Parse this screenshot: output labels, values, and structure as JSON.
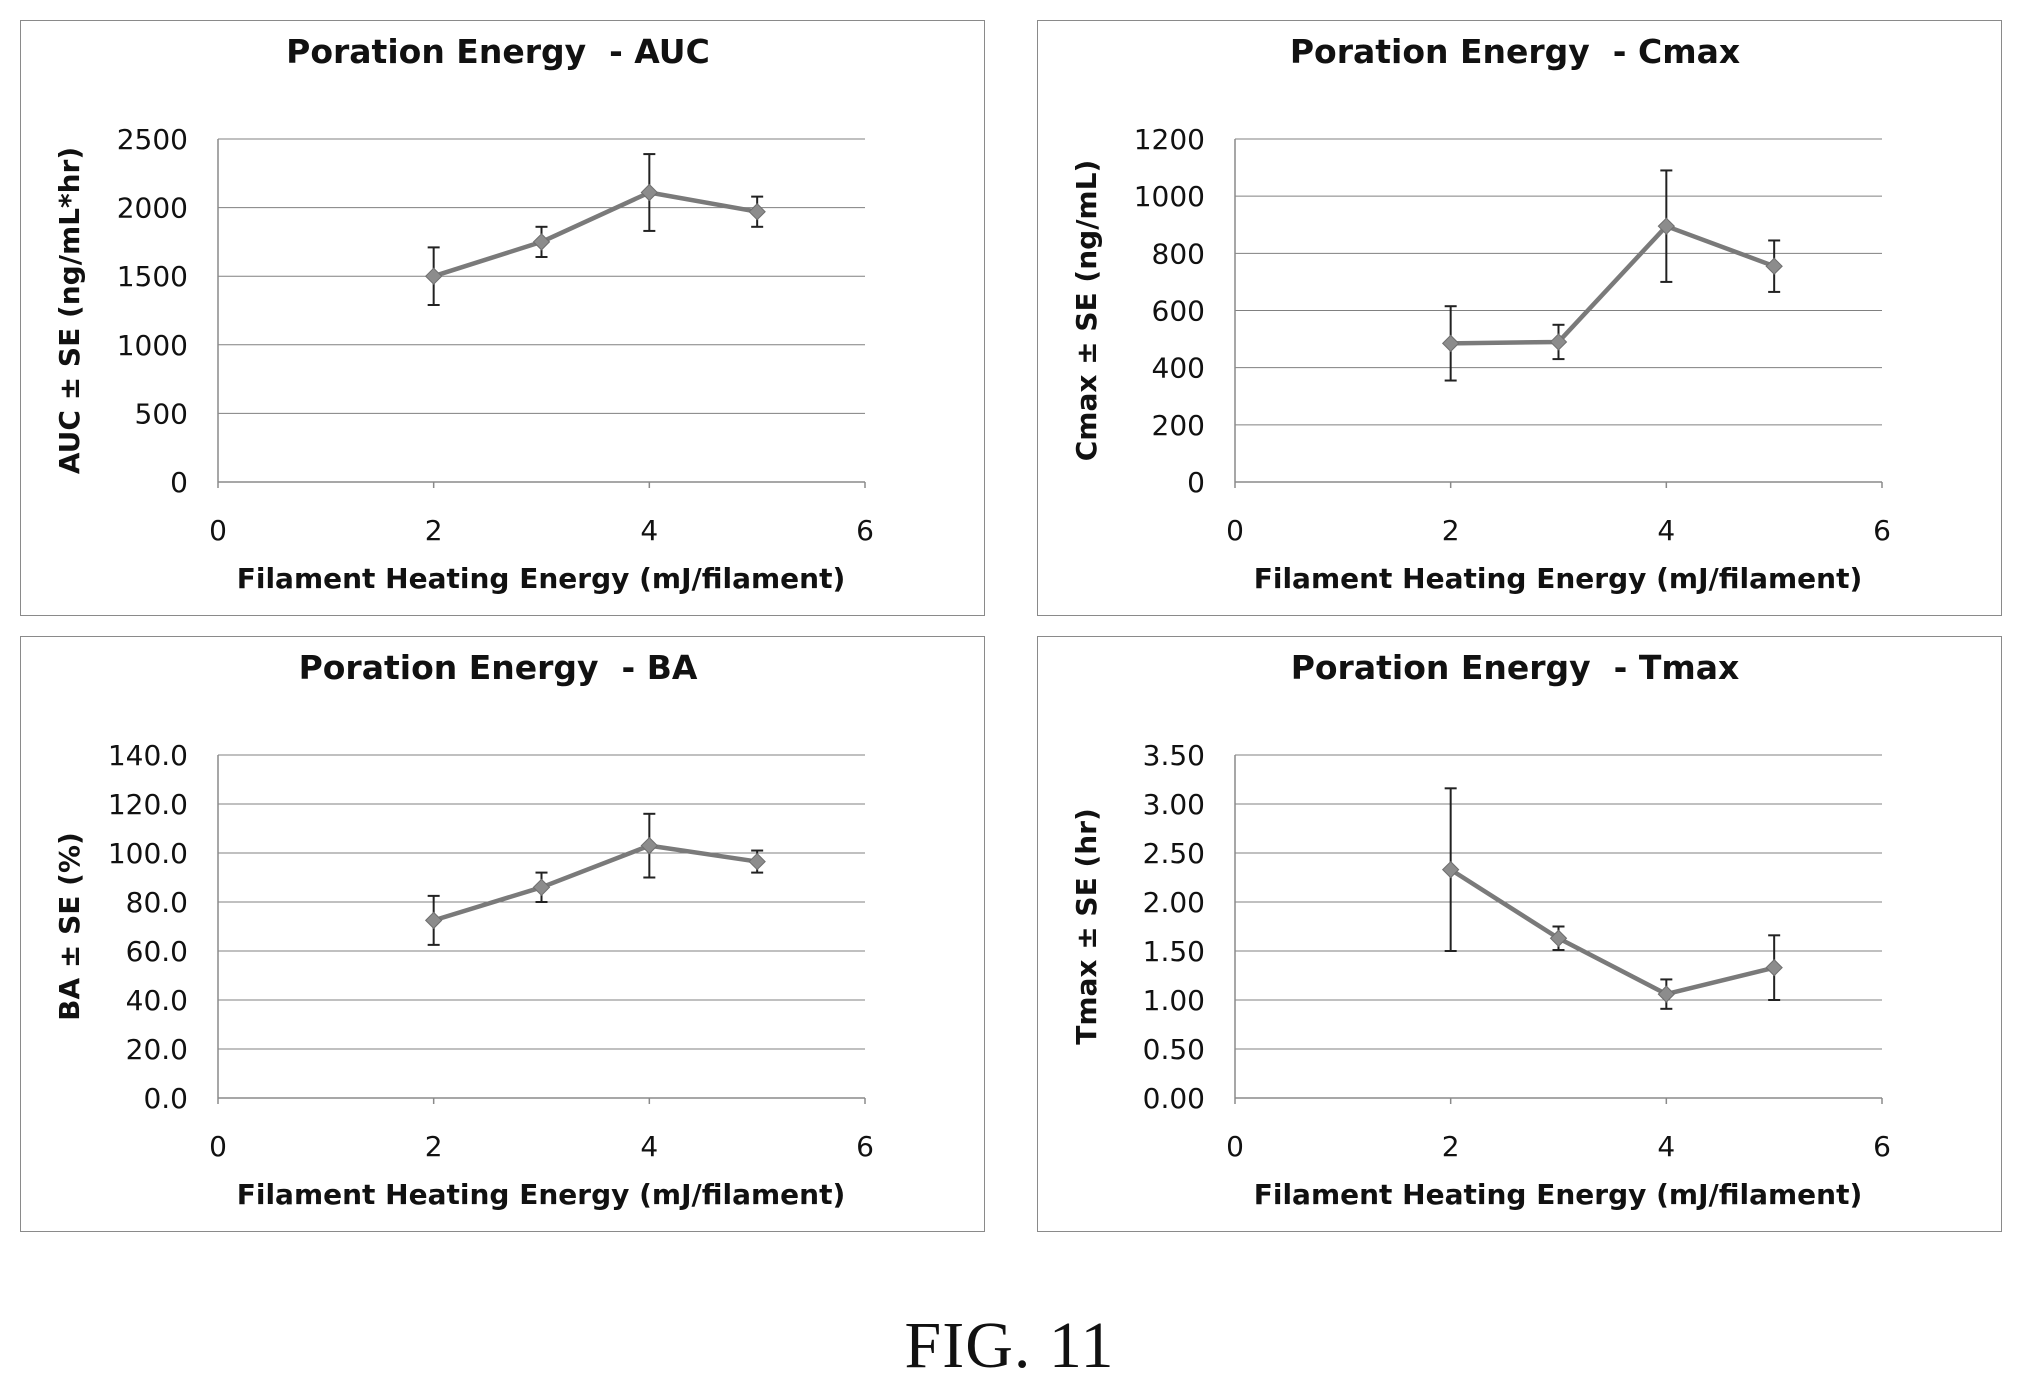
{
  "figure": {
    "caption": "FIG. 11"
  },
  "chart_data": [
    {
      "type": "line",
      "title": "Poration Energy  - AUC",
      "xlabel": "Filament Heating Energy (mJ/filament)",
      "ylabel": "AUC ± SE (ng/mL*hr)",
      "xlim": [
        0,
        6
      ],
      "ylim": [
        0,
        2500
      ],
      "x_ticks": [
        0,
        2,
        4,
        6
      ],
      "x_tick_labels": [
        "0",
        "2",
        "4",
        "6"
      ],
      "y_ticks": [
        0,
        500,
        1000,
        1500,
        2000,
        2500
      ],
      "y_tick_labels": [
        "0",
        "500",
        "1000",
        "1500",
        "2000",
        "2500"
      ],
      "grid": true,
      "series": [
        {
          "x": [
            2,
            3,
            4,
            5
          ],
          "y": [
            1500,
            1750,
            2110,
            1970
          ],
          "error": [
            210,
            110,
            280,
            110
          ]
        }
      ]
    },
    {
      "type": "line",
      "title": "Poration Energy  - Cmax",
      "xlabel": "Filament Heating Energy (mJ/filament)",
      "ylabel": "Cmax ± SE (ng/mL)",
      "xlim": [
        0,
        6
      ],
      "ylim": [
        0,
        1200
      ],
      "x_ticks": [
        0,
        2,
        4,
        6
      ],
      "x_tick_labels": [
        "0",
        "2",
        "4",
        "6"
      ],
      "y_ticks": [
        0,
        200,
        400,
        600,
        800,
        1000,
        1200
      ],
      "y_tick_labels": [
        "0",
        "200",
        "400",
        "600",
        "800",
        "1000",
        "1200"
      ],
      "grid": true,
      "series": [
        {
          "x": [
            2,
            3,
            4,
            5
          ],
          "y": [
            485,
            490,
            895,
            755
          ],
          "error": [
            130,
            60,
            195,
            90
          ]
        }
      ]
    },
    {
      "type": "line",
      "title": "Poration Energy  - BA",
      "xlabel": "Filament Heating Energy (mJ/filament)",
      "ylabel": "BA ± SE (%)",
      "xlim": [
        0,
        6
      ],
      "ylim": [
        0,
        140
      ],
      "x_ticks": [
        0,
        2,
        4,
        6
      ],
      "x_tick_labels": [
        "0",
        "2",
        "4",
        "6"
      ],
      "y_ticks": [
        0,
        20,
        40,
        60,
        80,
        100,
        120,
        140
      ],
      "y_tick_labels": [
        "0.0",
        "20.0",
        "40.0",
        "60.0",
        "80.0",
        "100.0",
        "120.0",
        "140.0"
      ],
      "grid": true,
      "series": [
        {
          "x": [
            2,
            3,
            4,
            5
          ],
          "y": [
            72.5,
            86,
            103,
            96.5
          ],
          "error": [
            10,
            6,
            13,
            4.5
          ]
        }
      ]
    },
    {
      "type": "line",
      "title": "Poration Energy  - Tmax",
      "xlabel": "Filament Heating Energy (mJ/filament)",
      "ylabel": "Tmax ± SE (hr)",
      "xlim": [
        0,
        6
      ],
      "ylim": [
        0,
        3.5
      ],
      "x_ticks": [
        0,
        2,
        4,
        6
      ],
      "x_tick_labels": [
        "0",
        "2",
        "4",
        "6"
      ],
      "y_ticks": [
        0,
        0.5,
        1,
        1.5,
        2,
        2.5,
        3,
        3.5
      ],
      "y_tick_labels": [
        "0.00",
        "0.50",
        "1.00",
        "1.50",
        "2.00",
        "2.50",
        "3.00",
        "3.50"
      ],
      "grid": true,
      "series": [
        {
          "x": [
            2,
            3,
            4,
            5
          ],
          "y": [
            2.33,
            1.63,
            1.06,
            1.33
          ],
          "error": [
            0.83,
            0.12,
            0.15,
            0.33
          ]
        }
      ]
    }
  ]
}
